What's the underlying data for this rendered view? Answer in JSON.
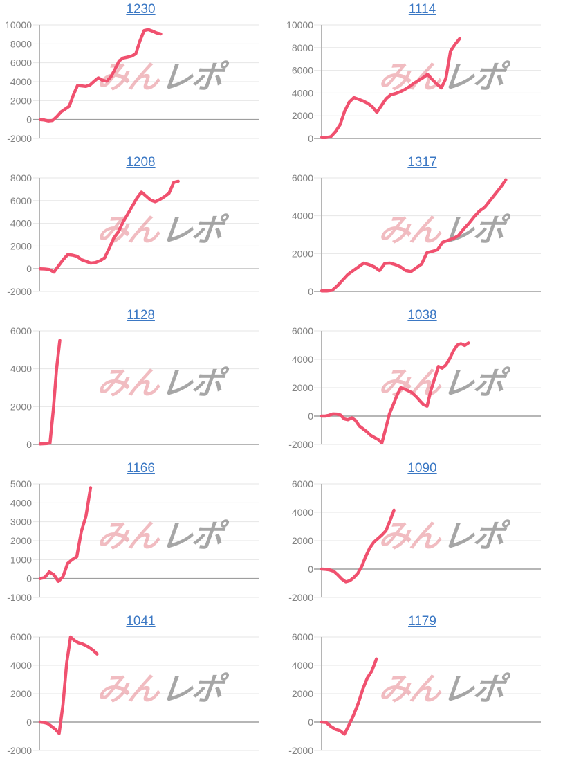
{
  "page": {
    "background": "#ffffff"
  },
  "styles": {
    "line_color": "#f0516f",
    "title_link_color": "#3b78c4",
    "tick_label_color": "#828282",
    "gridline_color": "#e6e6e6",
    "zero_line_color": "#9e9e9e",
    "axis_line_color": "#b5b5b5",
    "watermark_pink": "rgba(219,88,100,0.40)",
    "watermark_gray": "rgba(128,128,128,0.70)"
  },
  "watermark": {
    "pink_text": "みん",
    "gray_text": "レポ"
  },
  "chart_data": [
    {
      "type": "line",
      "title": "1230",
      "ylim": [
        -2000,
        10000
      ],
      "yticks": [
        10000,
        8000,
        6000,
        4000,
        2000,
        0,
        -2000
      ],
      "x_span_fraction": 0.55,
      "values": [
        0,
        -50,
        -150,
        -100,
        300,
        800,
        1100,
        1400,
        2600,
        3600,
        3550,
        3500,
        3650,
        4050,
        4400,
        4150,
        4050,
        4500,
        5300,
        6200,
        6500,
        6600,
        6700,
        6950,
        8300,
        9400,
        9500,
        9350,
        9150,
        9050
      ]
    },
    {
      "type": "line",
      "title": "1114",
      "ylim": [
        0,
        10000
      ],
      "yticks": [
        10000,
        8000,
        6000,
        4000,
        2000,
        0
      ],
      "x_span_fraction": 0.63,
      "values": [
        80,
        80,
        150,
        600,
        1200,
        2400,
        3200,
        3600,
        3450,
        3300,
        3100,
        2800,
        2300,
        2900,
        3500,
        3850,
        3950,
        4100,
        4300,
        4550,
        4850,
        5100,
        5350,
        5650,
        5200,
        4800,
        4450,
        5300,
        7700,
        8300,
        8800
      ]
    },
    {
      "type": "line",
      "title": "1208",
      "ylim": [
        -2000,
        8000
      ],
      "yticks": [
        8000,
        6000,
        4000,
        2000,
        0,
        -2000
      ],
      "x_span_fraction": 0.63,
      "values": [
        0,
        -20,
        -60,
        -300,
        250,
        800,
        1250,
        1200,
        1100,
        800,
        650,
        500,
        550,
        700,
        950,
        1800,
        2700,
        3250,
        4100,
        4800,
        5500,
        6200,
        6750,
        6400,
        6050,
        5900,
        6100,
        6350,
        6650,
        7600,
        7700
      ]
    },
    {
      "type": "line",
      "title": "1317",
      "ylim": [
        0,
        6000
      ],
      "yticks": [
        6000,
        4000,
        2000,
        0
      ],
      "x_span_fraction": 0.84,
      "values": [
        30,
        30,
        60,
        300,
        600,
        900,
        1100,
        1300,
        1500,
        1420,
        1300,
        1100,
        1480,
        1500,
        1420,
        1300,
        1100,
        1050,
        1250,
        1450,
        2050,
        2120,
        2200,
        2600,
        2700,
        2800,
        2950,
        3300,
        3600,
        3950,
        4250,
        4450,
        4800,
        5150,
        5500,
        5900
      ]
    },
    {
      "type": "line",
      "title": "1128",
      "ylim": [
        0,
        6000
      ],
      "yticks": [
        6000,
        4000,
        2000,
        0
      ],
      "x_span_fraction": 0.09,
      "values": [
        30,
        35,
        45,
        80,
        1800,
        4000,
        5500
      ]
    },
    {
      "type": "line",
      "title": "1038",
      "ylim": [
        -2000,
        6000
      ],
      "yticks": [
        6000,
        4000,
        2000,
        0,
        -2000
      ],
      "x_span_fraction": 0.67,
      "values": [
        0,
        0,
        60,
        150,
        140,
        80,
        -200,
        -260,
        -120,
        -300,
        -700,
        -900,
        -1100,
        -1350,
        -1500,
        -1650,
        -1900,
        -900,
        150,
        800,
        1450,
        2000,
        1900,
        1780,
        1650,
        1400,
        1100,
        820,
        700,
        1800,
        2650,
        3500,
        3380,
        3600,
        4050,
        4600,
        5000,
        5100,
        4980,
        5150
      ]
    },
    {
      "type": "line",
      "title": "1166",
      "ylim": [
        -1000,
        5000
      ],
      "yticks": [
        5000,
        4000,
        3000,
        2000,
        1000,
        0,
        -1000
      ],
      "x_span_fraction": 0.23,
      "values": [
        0,
        50,
        350,
        200,
        -150,
        100,
        800,
        1000,
        1150,
        2500,
        3300,
        4800
      ]
    },
    {
      "type": "line",
      "title": "1090",
      "ylim": [
        -2000,
        6000
      ],
      "yticks": [
        6000,
        4000,
        2000,
        0,
        -2000
      ],
      "x_span_fraction": 0.33,
      "values": [
        0,
        -20,
        -60,
        -150,
        -400,
        -700,
        -900,
        -820,
        -600,
        -300,
        200,
        900,
        1500,
        1900,
        2150,
        2400,
        2700,
        3400,
        4150
      ]
    },
    {
      "type": "line",
      "title": "1041",
      "ylim": [
        -2000,
        6000
      ],
      "yticks": [
        6000,
        4000,
        2000,
        0,
        -2000
      ],
      "x_span_fraction": 0.26,
      "values": [
        0,
        -30,
        -100,
        -300,
        -500,
        -800,
        1200,
        4200,
        6000,
        5750,
        5600,
        5520,
        5400,
        5250,
        5050,
        4800
      ]
    },
    {
      "type": "line",
      "title": "1179",
      "ylim": [
        -2000,
        6000
      ],
      "yticks": [
        6000,
        4000,
        2000,
        0,
        -2000
      ],
      "x_span_fraction": 0.25,
      "values": [
        0,
        -30,
        -300,
        -500,
        -600,
        -850,
        -200,
        500,
        1300,
        2300,
        3100,
        3600,
        4450
      ]
    }
  ]
}
